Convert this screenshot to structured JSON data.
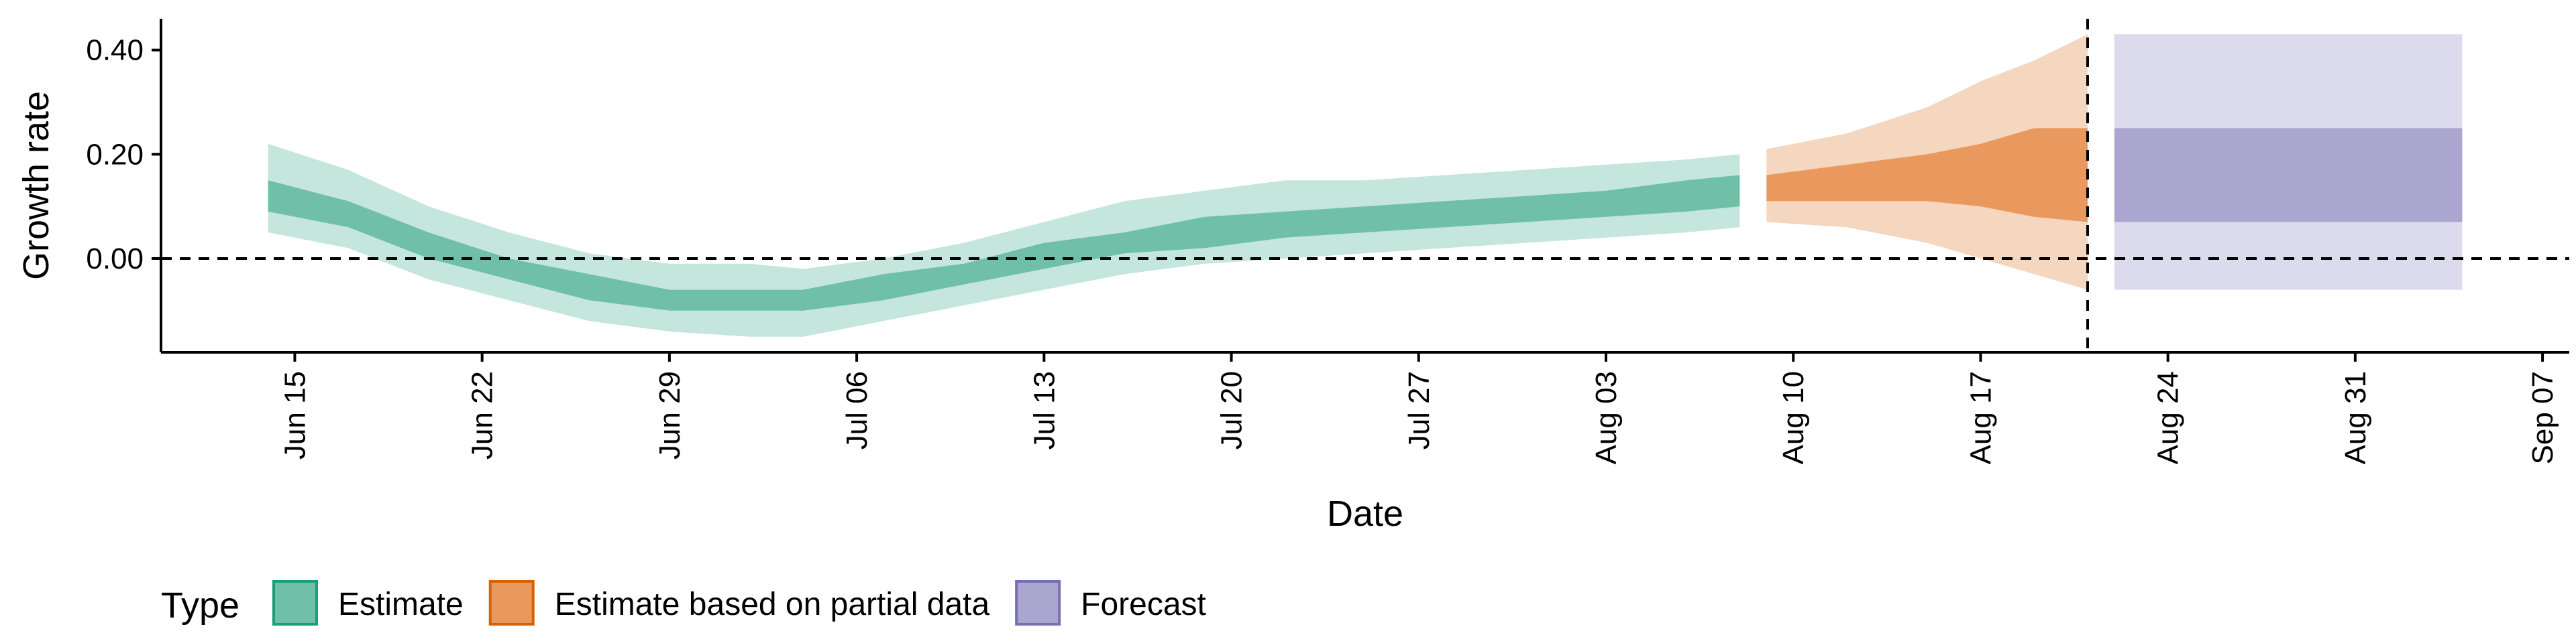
{
  "chart_data": {
    "type": "area",
    "title": "",
    "xlabel": "Date",
    "ylabel": "Growth rate",
    "x_tick_labels": [
      "Jun 15",
      "Jun 22",
      "Jun 29",
      "Jul 06",
      "Jul 13",
      "Jul 20",
      "Jul 27",
      "Aug 03",
      "Aug 10",
      "Aug 17",
      "Aug 24",
      "Aug 31",
      "Sep 07"
    ],
    "y_tick_labels": [
      "0.00",
      "0.20",
      "0.40"
    ],
    "ylim": [
      -0.18,
      0.46
    ],
    "xlim": [
      "2020-06-10",
      "2020-09-08"
    ],
    "hlines": [
      0
    ],
    "vlines": [
      "2020-08-21"
    ],
    "grid": false,
    "legend": {
      "title": "Type",
      "position": "bottom-left",
      "entries": [
        {
          "label": "Estimate",
          "fill": "#70c0a7",
          "stroke": "#1b9e77"
        },
        {
          "label": "Estimate based on partial data",
          "fill": "#e9995d",
          "stroke": "#d95f02"
        },
        {
          "label": "Forecast",
          "fill": "#aaa6d0",
          "stroke": "#7570b3"
        }
      ]
    },
    "series": [
      {
        "type_label": "Estimate",
        "colors": {
          "outer": "#c5e6dc",
          "inner": "#70c0a7"
        },
        "points": [
          {
            "date": "2020-06-14",
            "lo90": 0.05,
            "lo50": 0.09,
            "hi50": 0.15,
            "hi90": 0.22
          },
          {
            "date": "2020-06-17",
            "lo90": 0.02,
            "lo50": 0.06,
            "hi50": 0.11,
            "hi90": 0.17
          },
          {
            "date": "2020-06-20",
            "lo90": -0.04,
            "lo50": 0.0,
            "hi50": 0.05,
            "hi90": 0.1
          },
          {
            "date": "2020-06-23",
            "lo90": -0.08,
            "lo50": -0.04,
            "hi50": 0.0,
            "hi90": 0.05
          },
          {
            "date": "2020-06-26",
            "lo90": -0.12,
            "lo50": -0.08,
            "hi50": -0.03,
            "hi90": 0.01
          },
          {
            "date": "2020-06-29",
            "lo90": -0.14,
            "lo50": -0.1,
            "hi50": -0.06,
            "hi90": -0.01
          },
          {
            "date": "2020-07-02",
            "lo90": -0.15,
            "lo50": -0.1,
            "hi50": -0.06,
            "hi90": -0.01
          },
          {
            "date": "2020-07-04",
            "lo90": -0.15,
            "lo50": -0.1,
            "hi50": -0.06,
            "hi90": -0.02
          },
          {
            "date": "2020-07-07",
            "lo90": -0.12,
            "lo50": -0.08,
            "hi50": -0.03,
            "hi90": 0.0
          },
          {
            "date": "2020-07-10",
            "lo90": -0.09,
            "lo50": -0.05,
            "hi50": -0.01,
            "hi90": 0.03
          },
          {
            "date": "2020-07-13",
            "lo90": -0.06,
            "lo50": -0.02,
            "hi50": 0.03,
            "hi90": 0.07
          },
          {
            "date": "2020-07-16",
            "lo90": -0.03,
            "lo50": 0.01,
            "hi50": 0.05,
            "hi90": 0.11
          },
          {
            "date": "2020-07-19",
            "lo90": -0.01,
            "lo50": 0.02,
            "hi50": 0.08,
            "hi90": 0.13
          },
          {
            "date": "2020-07-22",
            "lo90": 0.0,
            "lo50": 0.04,
            "hi50": 0.09,
            "hi90": 0.15
          },
          {
            "date": "2020-07-25",
            "lo90": 0.01,
            "lo50": 0.05,
            "hi50": 0.1,
            "hi90": 0.15
          },
          {
            "date": "2020-07-28",
            "lo90": 0.02,
            "lo50": 0.06,
            "hi50": 0.11,
            "hi90": 0.16
          },
          {
            "date": "2020-07-31",
            "lo90": 0.03,
            "lo50": 0.07,
            "hi50": 0.12,
            "hi90": 0.17
          },
          {
            "date": "2020-08-03",
            "lo90": 0.04,
            "lo50": 0.08,
            "hi50": 0.13,
            "hi90": 0.18
          },
          {
            "date": "2020-08-06",
            "lo90": 0.05,
            "lo50": 0.09,
            "hi50": 0.15,
            "hi90": 0.19
          },
          {
            "date": "2020-08-08",
            "lo90": 0.06,
            "lo50": 0.1,
            "hi50": 0.16,
            "hi90": 0.2
          }
        ]
      },
      {
        "type_label": "Estimate based on partial data",
        "colors": {
          "outer": "#f5d6be",
          "inner": "#e9995d"
        },
        "points": [
          {
            "date": "2020-08-09",
            "lo90": 0.07,
            "lo50": 0.11,
            "hi50": 0.16,
            "hi90": 0.21
          },
          {
            "date": "2020-08-12",
            "lo90": 0.06,
            "lo50": 0.11,
            "hi50": 0.18,
            "hi90": 0.24
          },
          {
            "date": "2020-08-15",
            "lo90": 0.03,
            "lo50": 0.11,
            "hi50": 0.2,
            "hi90": 0.29
          },
          {
            "date": "2020-08-17",
            "lo90": 0.0,
            "lo50": 0.1,
            "hi50": 0.22,
            "hi90": 0.34
          },
          {
            "date": "2020-08-19",
            "lo90": -0.03,
            "lo50": 0.08,
            "hi50": 0.25,
            "hi90": 0.38
          },
          {
            "date": "2020-08-21",
            "lo90": -0.06,
            "lo50": 0.07,
            "hi50": 0.25,
            "hi90": 0.43
          }
        ]
      },
      {
        "type_label": "Forecast",
        "colors": {
          "outer": "#dcdbed",
          "inner": "#aaa6d0"
        },
        "points": [
          {
            "date": "2020-08-22",
            "lo90": -0.06,
            "lo50": 0.07,
            "hi50": 0.25,
            "hi90": 0.43
          },
          {
            "date": "2020-09-04",
            "lo90": -0.06,
            "lo50": 0.07,
            "hi50": 0.25,
            "hi90": 0.43
          }
        ]
      }
    ]
  }
}
